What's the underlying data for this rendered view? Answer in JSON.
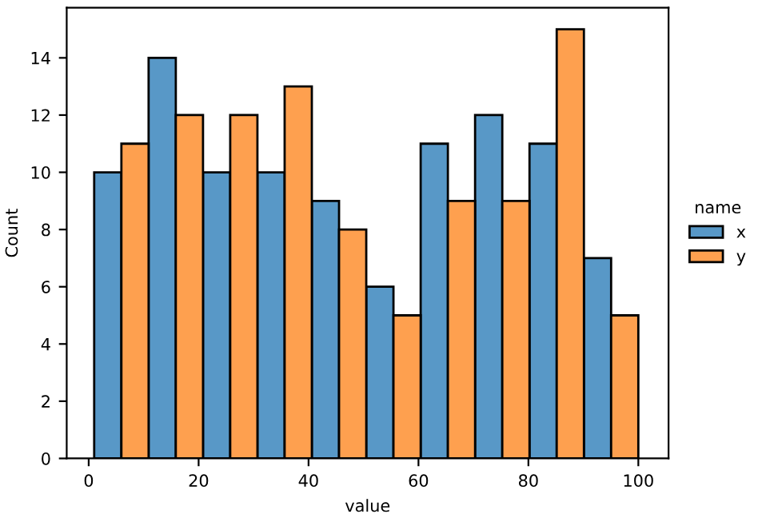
{
  "chart_data": {
    "type": "histogram",
    "xlabel": "value",
    "ylabel": "Count",
    "legend_title": "name",
    "legend": "right",
    "grid": false,
    "bins": [
      1.0,
      10.9,
      20.8,
      30.7,
      40.6,
      50.5,
      60.4,
      70.3,
      80.2,
      90.1,
      100.0
    ],
    "series": [
      {
        "name": "x",
        "color": "#5898c7",
        "values": [
          10,
          14,
          10,
          10,
          9,
          6,
          11,
          12,
          11,
          7
        ]
      },
      {
        "name": "y",
        "color": "#fea04f",
        "values": [
          11,
          12,
          12,
          13,
          8,
          5,
          9,
          9,
          15,
          5
        ]
      }
    ],
    "xlim": [
      -4,
      105.5
    ],
    "xticks": [
      0,
      20,
      40,
      60,
      80,
      100
    ],
    "ylim": [
      0,
      15.75
    ],
    "yticks": [
      0,
      2,
      4,
      6,
      8,
      10,
      12,
      14
    ]
  }
}
